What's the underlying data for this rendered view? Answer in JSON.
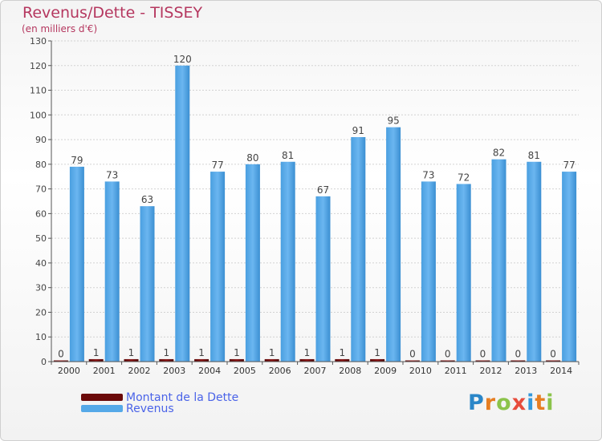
{
  "title": "Revenus/Dette - TISSEY",
  "subtitle": "(en milliers d'€)",
  "logo": {
    "text": "Proxiti",
    "colors": [
      "#2a86c8",
      "#e67e22",
      "#8bc34a",
      "#e74c3c",
      "#3498db",
      "#e67e22",
      "#8bc34a"
    ]
  },
  "legend": [
    {
      "label": "Montant de la Dette",
      "color": "#6b0a0a"
    },
    {
      "label": "Revenus",
      "color": "#55a9e8"
    }
  ],
  "chart_data": {
    "type": "bar",
    "categories": [
      "2000",
      "2001",
      "2002",
      "2003",
      "2004",
      "2005",
      "2006",
      "2007",
      "2008",
      "2009",
      "2010",
      "2011",
      "2012",
      "2013",
      "2014"
    ],
    "series": [
      {
        "name": "Montant de la Dette",
        "values": [
          0,
          1,
          1,
          1,
          1,
          1,
          1,
          1,
          1,
          1,
          0,
          0,
          0,
          0,
          0
        ],
        "color": "#6b0a0a"
      },
      {
        "name": "Revenus",
        "values": [
          79,
          73,
          63,
          120,
          77,
          80,
          81,
          67,
          91,
          95,
          73,
          72,
          82,
          81,
          77
        ],
        "color": "#55a9e8"
      }
    ],
    "ylim": [
      0,
      130
    ],
    "yticks": [
      0,
      10,
      20,
      30,
      40,
      50,
      60,
      70,
      80,
      90,
      100,
      110,
      120,
      130
    ],
    "grid": true
  }
}
